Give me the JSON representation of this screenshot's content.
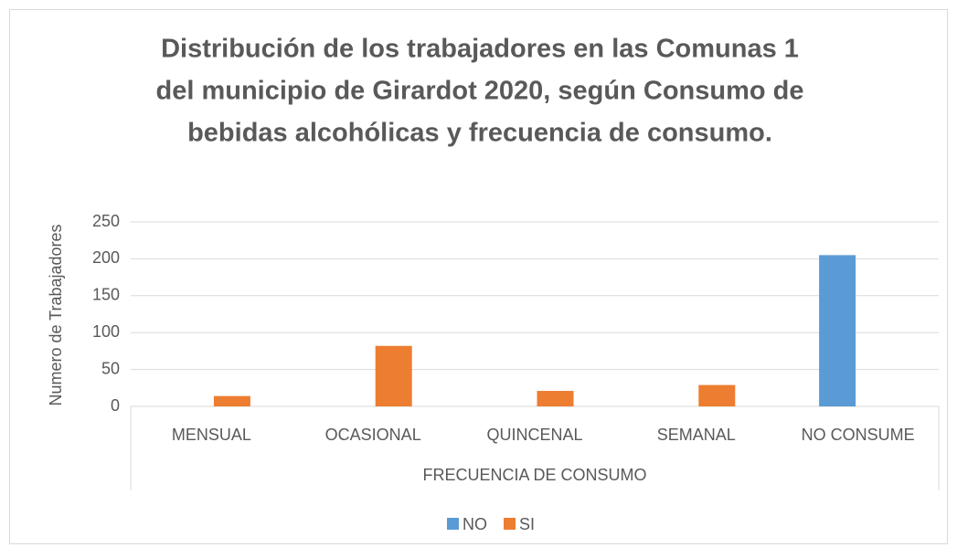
{
  "chart_data": {
    "type": "bar",
    "title": [
      "Distribución de los trabajadores en las Comunas 1",
      "del municipio de Girardot 2020, según Consumo de",
      "bebidas alcohólicas y frecuencia de consumo."
    ],
    "x_label": "FRECUENCIA DE CONSUMO",
    "y_label": "Numero de Trabajadores",
    "categories": [
      "MENSUAL",
      "OCASIONAL",
      "QUINCENAL",
      "SEMANAL",
      "NO CONSUME"
    ],
    "series": [
      {
        "name": "NO",
        "color": "#5b9bd5",
        "values": [
          null,
          null,
          null,
          null,
          205
        ]
      },
      {
        "name": "SI",
        "color": "#ed7d31",
        "values": [
          14,
          82,
          21,
          29,
          null
        ]
      }
    ],
    "ylim": [
      0,
      250
    ],
    "yticks": [
      0,
      50,
      100,
      150,
      200,
      250
    ],
    "grid": true,
    "legend": "bottom"
  }
}
